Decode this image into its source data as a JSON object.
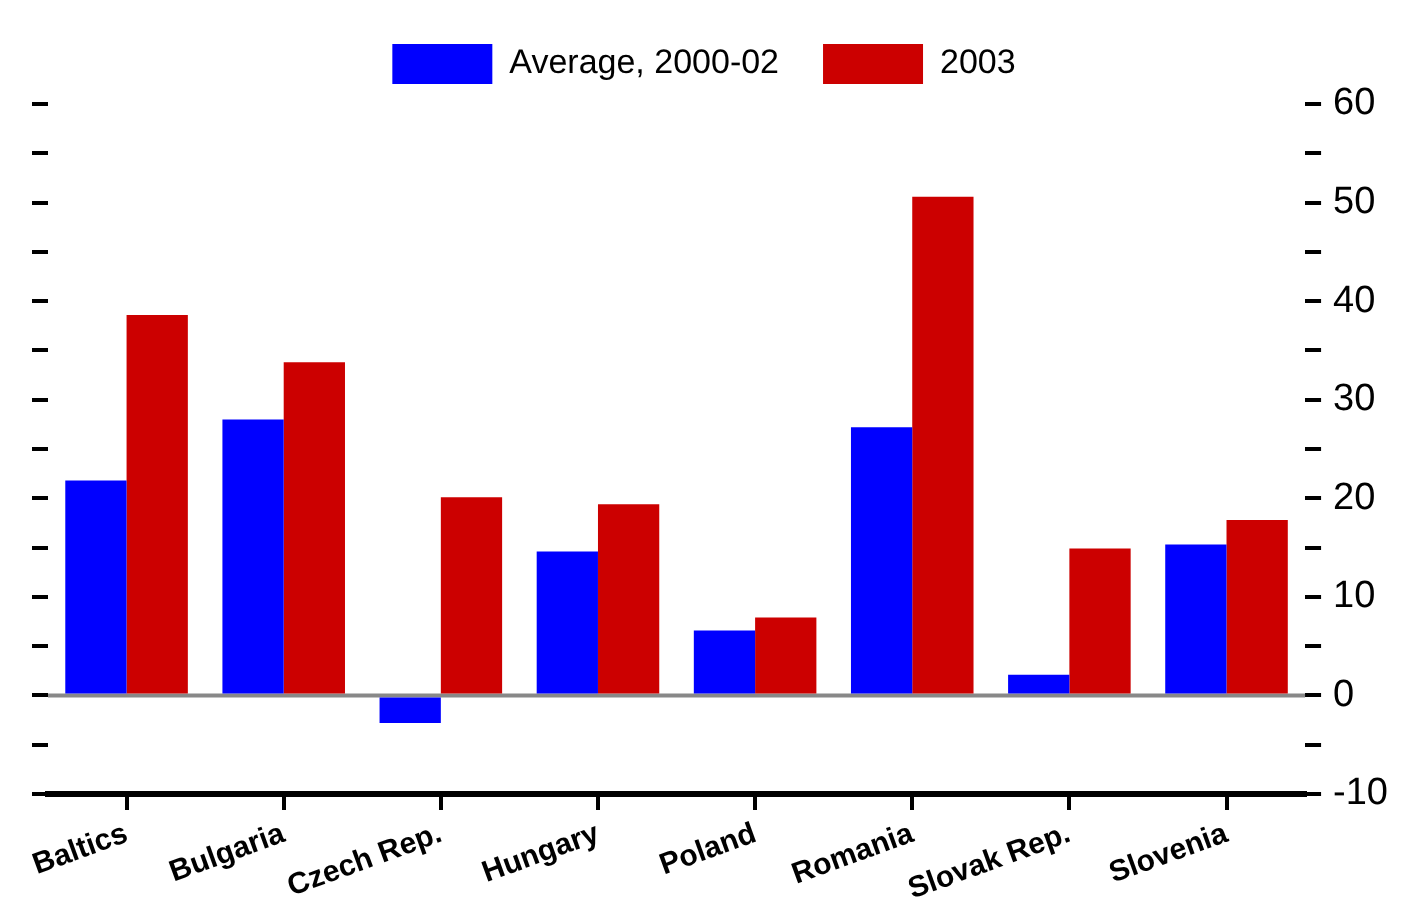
{
  "chart_data": {
    "type": "bar",
    "categories": [
      "Baltics",
      "Bulgaria",
      "Czech Rep.",
      "Hungary",
      "Poland",
      "Romania",
      "Slovak Rep.",
      "Slovenia"
    ],
    "series": [
      {
        "name": "Average, 2000-02",
        "color": "#0000ff",
        "values": [
          21.8,
          28.0,
          -2.8,
          14.6,
          6.6,
          27.2,
          2.1,
          15.3
        ]
      },
      {
        "name": "2003",
        "color": "#cc0000",
        "values": [
          38.6,
          33.8,
          20.1,
          19.4,
          7.9,
          50.6,
          14.9,
          17.8
        ]
      }
    ],
    "ylim": [
      -10,
      60
    ],
    "yticks": [
      -10,
      {
        "value": -5,
        "label": null
      },
      0,
      {
        "value": 5,
        "label": null
      },
      10,
      {
        "value": 15,
        "label": null
      },
      20,
      {
        "value": 25,
        "label": null
      },
      30,
      {
        "value": 35,
        "label": null
      },
      40,
      {
        "value": 45,
        "label": null
      },
      50,
      {
        "value": 55,
        "label": null
      },
      60
    ],
    "legend": "top"
  }
}
